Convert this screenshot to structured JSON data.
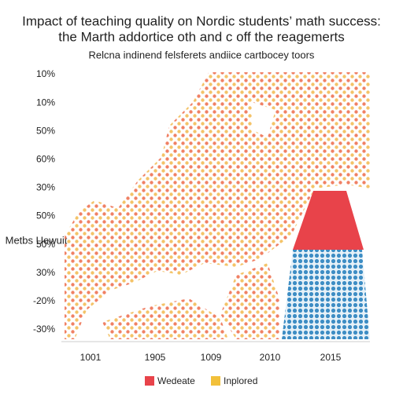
{
  "chart_data": {
    "type": "dot-map",
    "title": [
      "Impact of teaching quality on Nordic students’ math success:",
      "the Marth addortice oth and c off the reagemerts"
    ],
    "subtitle": "Relcna indinend felsferets andiice cartbocey toors",
    "y_axis_label": "Metbs Uewuit",
    "y_labels": [
      "10%",
      "10%",
      "50%",
      "60%",
      "30%",
      "50%",
      "50%",
      "30%",
      "-20%",
      "-30%"
    ],
    "categories": [
      "1001",
      "1905",
      "1009",
      "2010",
      "2015"
    ],
    "series": [
      {
        "name": "Wedeate",
        "color": "#e8434a"
      },
      {
        "name": "Inplored",
        "color": "#f2c03a"
      }
    ]
  }
}
